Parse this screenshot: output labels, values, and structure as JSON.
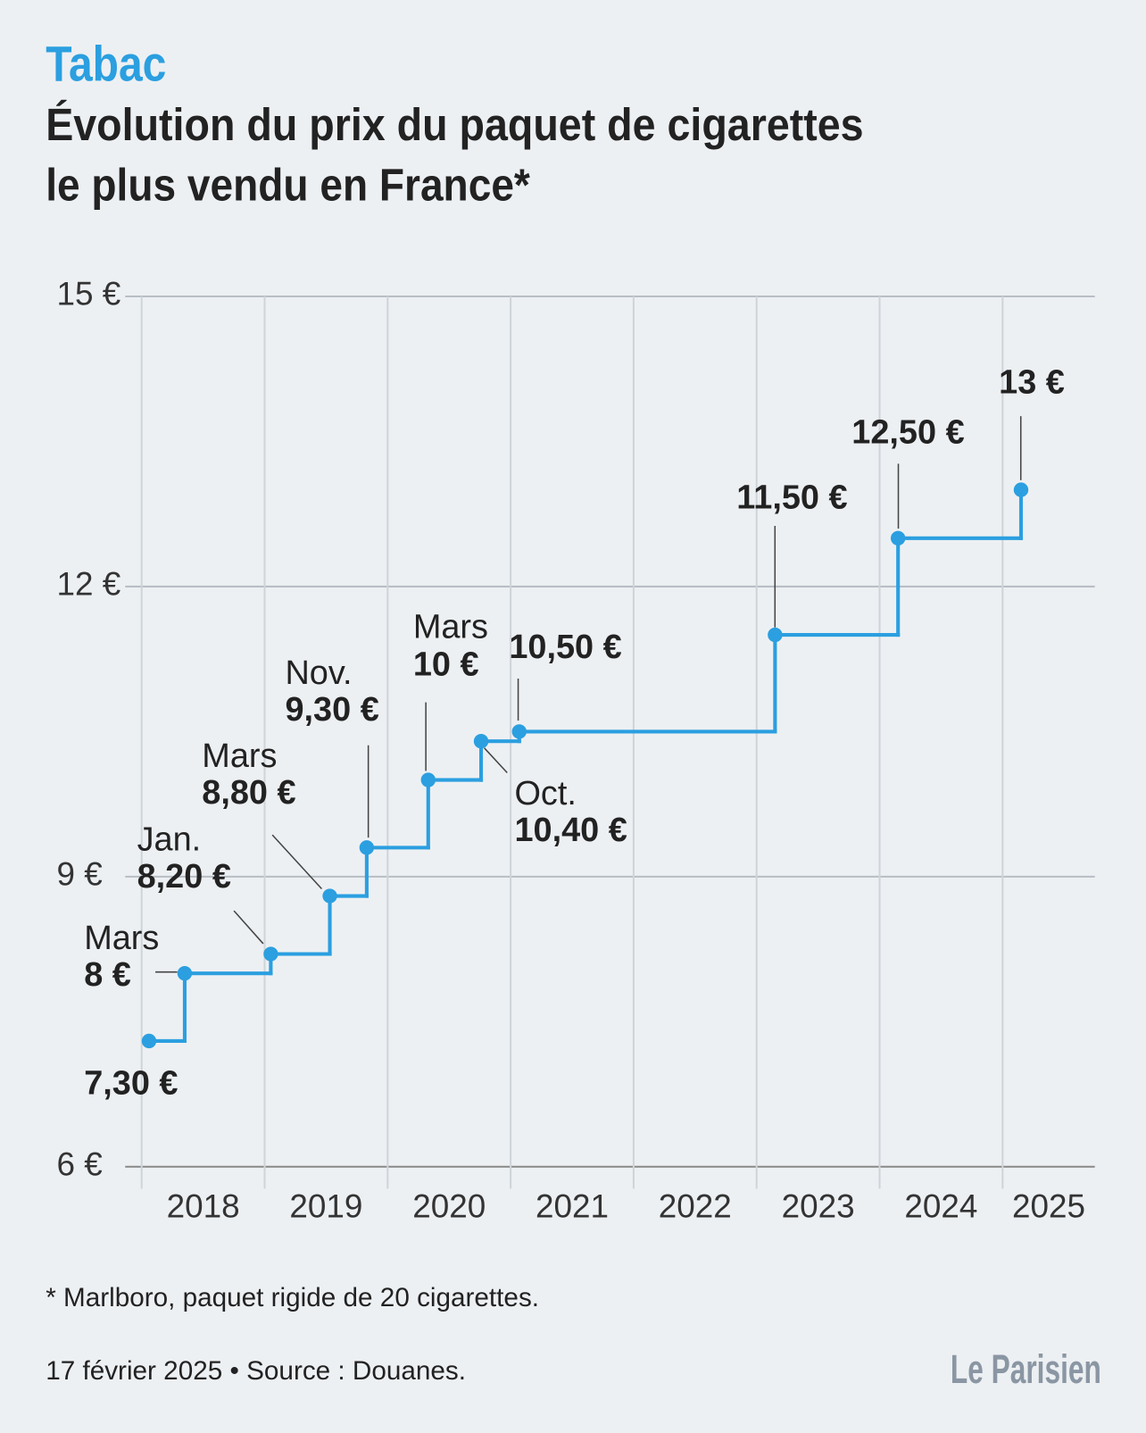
{
  "kicker": "Tabac",
  "chart_data": {
    "type": "step",
    "title": [
      "Évolution du prix du paquet de cigarettes",
      "le plus vendu en France*"
    ],
    "x": [
      2018.06,
      2018.35,
      2019.05,
      2019.53,
      2019.83,
      2020.33,
      2020.76,
      2021.07,
      2023.15,
      2024.15,
      2025.15
    ],
    "values": [
      7.3,
      8,
      8.2,
      8.8,
      9.3,
      10,
      10.4,
      10.5,
      11.5,
      12.5,
      13
    ],
    "value_labels": [
      "7,30 €",
      "8 €",
      "8,20 €",
      "8,80 €",
      "9,30 €",
      "10 €",
      "10,40 €",
      "10,50 €",
      "11,50 €",
      "12,50 €",
      "13 €"
    ],
    "date_labels": [
      null,
      "Mars",
      "Jan.",
      "Mars",
      "Nov.",
      "Mars",
      "Oct.",
      null,
      null,
      null,
      null
    ],
    "color": "#2b9fe0",
    "xlim": [
      2018,
      2025.75
    ],
    "xticks": [
      2018,
      2019,
      2020,
      2021,
      2022,
      2023,
      2024,
      2025
    ],
    "ylim": [
      6,
      15
    ],
    "yticks": [
      {
        "value": 6,
        "label": "6 €"
      },
      {
        "value": 9,
        "label": "9 €"
      },
      {
        "value": 12,
        "label": "12 €"
      },
      {
        "value": 15,
        "label": "15 €"
      }
    ],
    "grid": true
  },
  "footnote": "* Marlboro, paquet rigide de 20 cigarettes.",
  "source": "17 février 2025 • Source : Douanes.",
  "logo": "Le Parisien"
}
